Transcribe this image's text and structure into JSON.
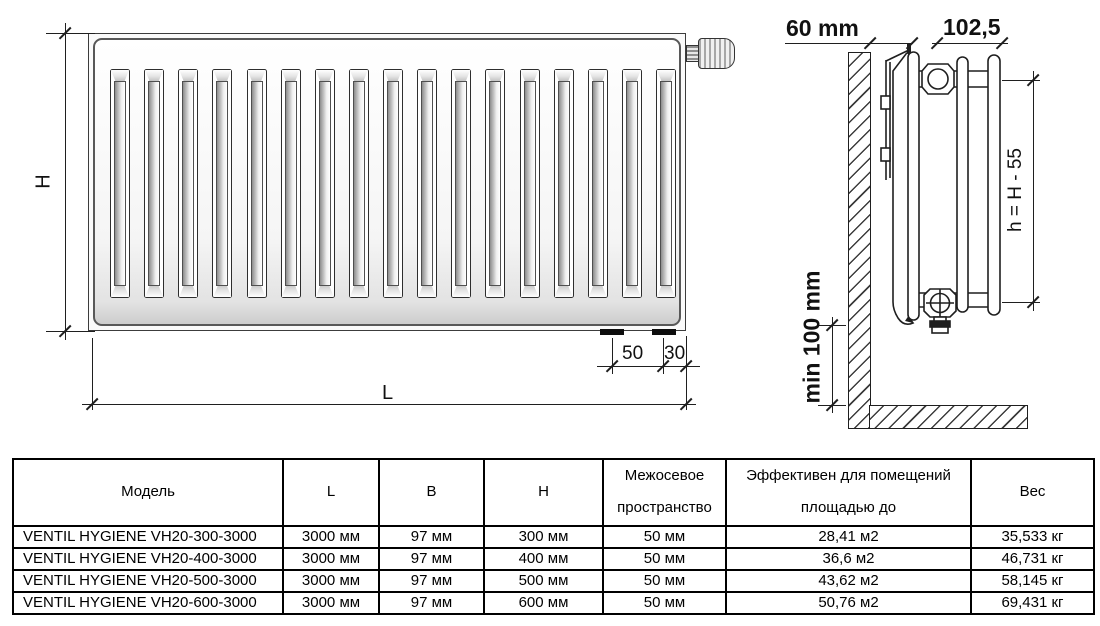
{
  "drawing": {
    "front_view": {
      "height_label": "H",
      "length_label": "L",
      "bottom_offset_50": "50",
      "bottom_offset_30": "30",
      "fins_count": 17
    },
    "side_view": {
      "wall_clearance": "60 mm",
      "depth": "102,5",
      "connection_height": "h = H - 55",
      "floor_clearance": "min 100 mm"
    }
  },
  "table": {
    "headers": [
      "Модель",
      "L",
      "B",
      "H",
      "Межосевое\nпространство",
      "Эффективен для помещений\nплощадью до",
      "Вес"
    ],
    "rows": [
      [
        "VENTIL HYGIENE VH20-300-3000",
        "3000 мм",
        "97 мм",
        "300 мм",
        "50 мм",
        "28,41 м2",
        "35,533 кг"
      ],
      [
        "VENTIL HYGIENE VH20-400-3000",
        "3000 мм",
        "97 мм",
        "400 мм",
        "50 мм",
        "36,6 м2",
        "46,731 кг"
      ],
      [
        "VENTIL HYGIENE VH20-500-3000",
        "3000 мм",
        "97 мм",
        "500 мм",
        "50 мм",
        "43,62 м2",
        "58,145 кг"
      ],
      [
        "VENTIL HYGIENE VH20-600-3000",
        "3000 мм",
        "97 мм",
        "600 мм",
        "50 мм",
        "50,76 м2",
        "69,431 кг"
      ]
    ]
  }
}
